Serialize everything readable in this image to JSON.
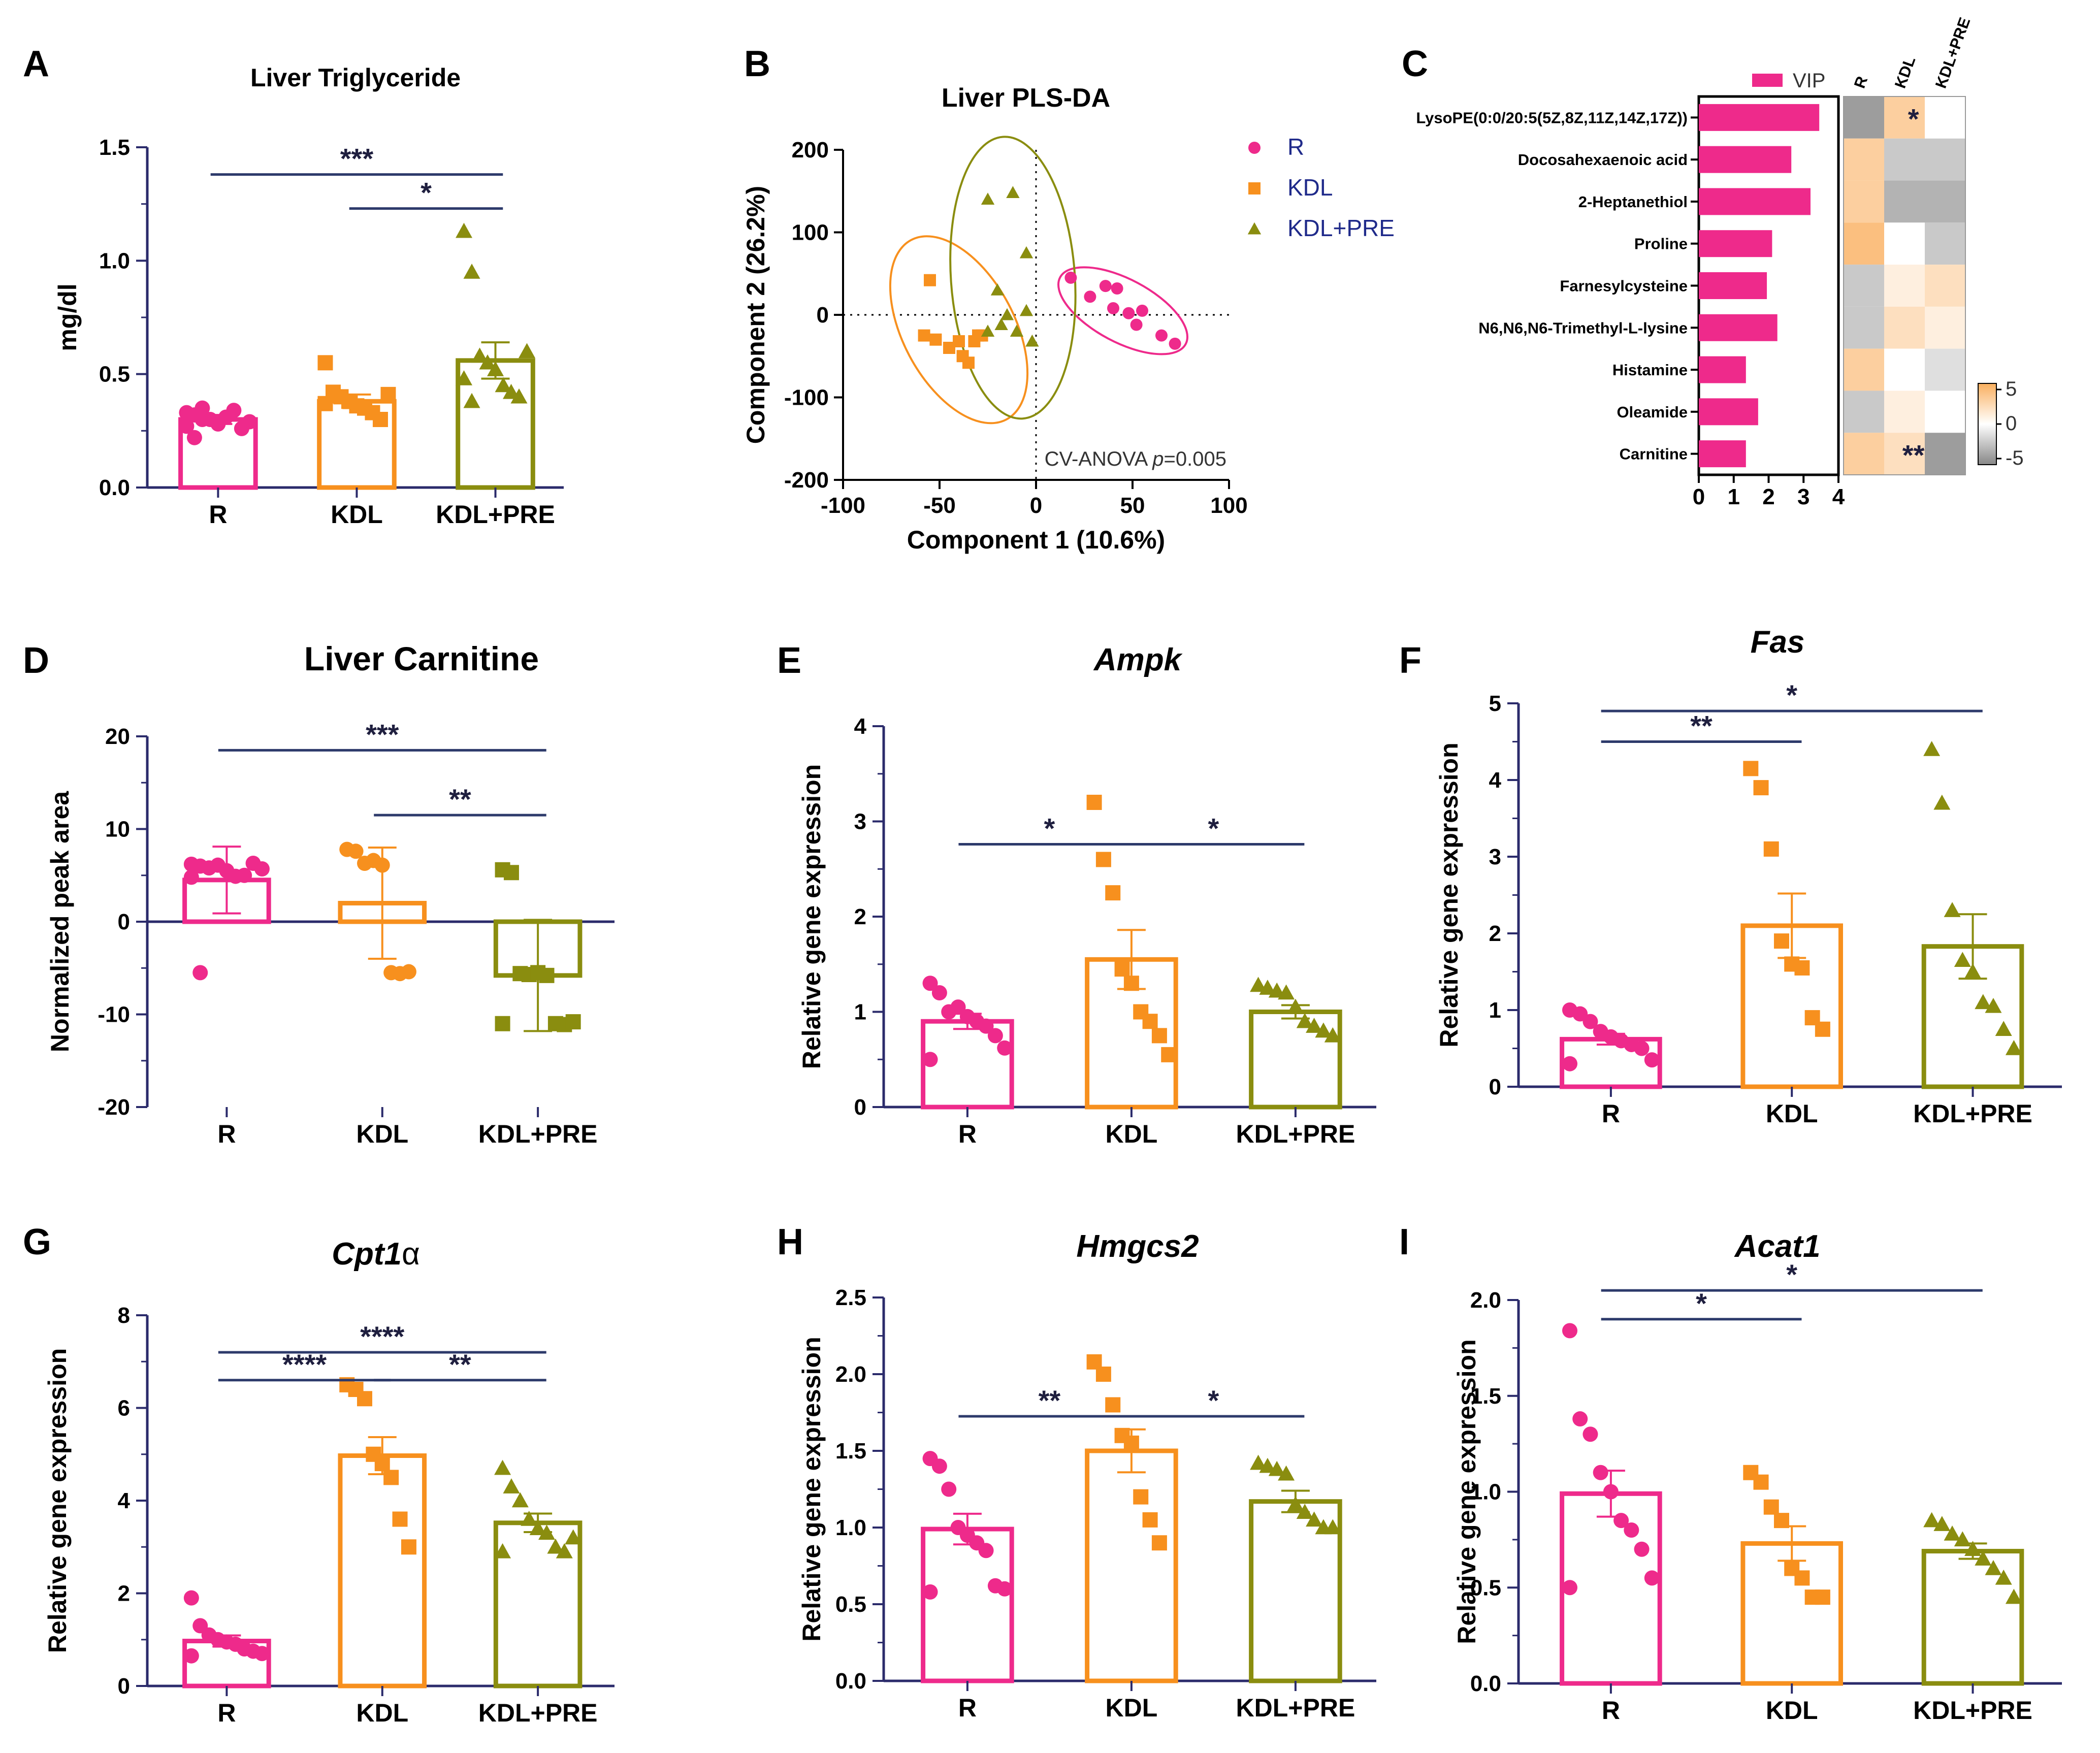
{
  "colors": {
    "R": "#ee2a8b",
    "KDL": "#f7901e",
    "KDL+PRE": "#8a8d0f",
    "axis": "#2b2b6b",
    "vip": "#ee2a8b"
  },
  "chart_data": [
    {
      "id": "A",
      "label": "A",
      "type": "bar",
      "title": "Liver Triglyceride",
      "ylabel": "mg/dl",
      "ylim": [
        0,
        1.5
      ],
      "yticks": [
        "0.0",
        "0.5",
        "1.0",
        "1.5"
      ],
      "categories": [
        "R",
        "KDL",
        "KDL+PRE"
      ],
      "bars": [
        {
          "mean": 0.3,
          "sem": 0.02,
          "marker": "circle",
          "points": [
            0.27,
            0.32,
            0.35,
            0.3,
            0.28,
            0.31,
            0.34,
            0.26,
            0.29,
            0.33,
            0.22,
            0.3
          ]
        },
        {
          "mean": 0.38,
          "sem": 0.03,
          "marker": "square",
          "points": [
            0.55,
            0.42,
            0.4,
            0.38,
            0.36,
            0.35,
            0.33,
            0.3,
            0.41,
            0.37
          ]
        },
        {
          "mean": 0.56,
          "sem": 0.08,
          "marker": "triangle",
          "points": [
            1.13,
            0.95,
            0.58,
            0.55,
            0.52,
            0.45,
            0.42,
            0.4,
            0.6,
            0.48,
            0.38
          ]
        }
      ],
      "sig": [
        {
          "from": 0,
          "to": 2,
          "text": "***"
        },
        {
          "from": 1,
          "to": 2,
          "text": "*"
        }
      ]
    },
    {
      "id": "D",
      "label": "D",
      "type": "bar",
      "title": "Liver Carnitine",
      "ylabel": "Normalized peak area",
      "ylim": [
        -20,
        20
      ],
      "yticks": [
        "-20",
        "-10",
        "0",
        "10",
        "20"
      ],
      "categories": [
        "R",
        "KDL",
        "KDL+PRE"
      ],
      "bars": [
        {
          "mean": 4.5,
          "sem": 3.6,
          "marker": "circle",
          "points": [
            6.2,
            6.0,
            5.8,
            6.1,
            5.5,
            4.9,
            5.0,
            6.3,
            5.7,
            4.8,
            -5.5
          ]
        },
        {
          "mean": 2.0,
          "sem": 6.0,
          "marker": "circle",
          "points": [
            7.8,
            7.6,
            6.3,
            6.6,
            6.1,
            -5.5,
            -5.6,
            -5.4
          ]
        },
        {
          "mean": -5.8,
          "sem": 6.0,
          "marker": "square",
          "points": [
            5.6,
            5.3,
            -5.6,
            -5.7,
            -5.5,
            -5.8,
            -11.0,
            -11.1,
            -10.8,
            -11.0
          ]
        }
      ],
      "sig": [
        {
          "from": 0,
          "to": 2,
          "text": "***"
        },
        {
          "from": 1,
          "to": 2,
          "text": "**"
        }
      ]
    },
    {
      "id": "E",
      "label": "E",
      "type": "bar",
      "title": "Ampk",
      "ylabel": "Relative gene expression",
      "ylim": [
        0,
        4
      ],
      "yticks": [
        "0",
        "1",
        "2",
        "3",
        "4"
      ],
      "categories": [
        "R",
        "KDL",
        "KDL+PRE"
      ],
      "bars": [
        {
          "mean": 0.9,
          "sem": 0.08,
          "marker": "circle",
          "points": [
            1.3,
            1.2,
            1.0,
            1.05,
            0.95,
            0.9,
            0.85,
            0.75,
            0.62,
            0.5
          ]
        },
        {
          "mean": 1.55,
          "sem": 0.31,
          "marker": "square",
          "points": [
            3.2,
            2.6,
            2.25,
            1.45,
            1.3,
            1.0,
            0.9,
            0.75,
            0.55
          ]
        },
        {
          "mean": 1.0,
          "sem": 0.07,
          "marker": "triangle",
          "points": [
            1.28,
            1.25,
            1.22,
            1.2,
            1.05,
            0.9,
            0.85,
            0.8,
            0.75
          ]
        }
      ],
      "sig": [
        {
          "from": 0,
          "to": 1,
          "text": "*"
        },
        {
          "from": 1,
          "to": 2,
          "text": "*"
        }
      ]
    },
    {
      "id": "F",
      "label": "F",
      "type": "bar",
      "title": "Fas",
      "ylabel": "Relative gene expression",
      "ylim": [
        0,
        5
      ],
      "yticks": [
        "0",
        "1",
        "2",
        "3",
        "4",
        "5"
      ],
      "categories": [
        "R",
        "KDL",
        "KDL+PRE"
      ],
      "bars": [
        {
          "mean": 0.62,
          "sem": 0.07,
          "marker": "circle",
          "points": [
            1.0,
            0.95,
            0.85,
            0.72,
            0.65,
            0.6,
            0.55,
            0.5,
            0.35,
            0.3
          ]
        },
        {
          "mean": 2.1,
          "sem": 0.42,
          "marker": "square",
          "points": [
            4.15,
            3.9,
            3.1,
            1.9,
            1.6,
            1.55,
            0.9,
            0.75
          ]
        },
        {
          "mean": 1.83,
          "sem": 0.42,
          "marker": "triangle",
          "points": [
            4.4,
            3.7,
            2.3,
            1.65,
            1.5,
            1.1,
            1.05,
            0.75,
            0.5
          ]
        }
      ],
      "sig": [
        {
          "from": 0,
          "to": 1,
          "text": "**"
        },
        {
          "from": 0,
          "to": 2,
          "text": "*"
        }
      ]
    },
    {
      "id": "G",
      "label": "G",
      "type": "bar",
      "title": "Cpt1",
      "title_suffix": "α",
      "ylabel": "Relative gene expression",
      "ylim": [
        0,
        8
      ],
      "yticks": [
        "0",
        "2",
        "4",
        "6",
        "8"
      ],
      "categories": [
        "R",
        "KDL",
        "KDL+PRE"
      ],
      "bars": [
        {
          "mean": 0.97,
          "sem": 0.12,
          "marker": "circle",
          "points": [
            1.9,
            1.3,
            1.1,
            1.0,
            0.95,
            0.9,
            0.8,
            0.75,
            0.7,
            0.65
          ]
        },
        {
          "mean": 4.97,
          "sem": 0.4,
          "marker": "square",
          "points": [
            6.5,
            6.4,
            6.2,
            5.0,
            4.8,
            4.5,
            3.6,
            3.0
          ]
        },
        {
          "mean": 3.52,
          "sem": 0.2,
          "marker": "triangle",
          "points": [
            4.7,
            4.3,
            4.0,
            3.6,
            3.4,
            3.3,
            3.0,
            2.9,
            3.2,
            2.9
          ]
        }
      ],
      "sig": [
        {
          "from": 0,
          "to": 2,
          "text": "****"
        },
        {
          "from": 0,
          "to": 1,
          "text": "****"
        },
        {
          "from": 1,
          "to": 2,
          "text": "**"
        }
      ]
    },
    {
      "id": "H",
      "label": "H",
      "type": "bar",
      "title": "Hmgcs2",
      "ylabel": "Relative gene expression",
      "ylim": [
        0,
        2.5
      ],
      "yticks": [
        "0.0",
        "0.5",
        "1.0",
        "1.5",
        "2.0",
        "2.5"
      ],
      "categories": [
        "R",
        "KDL",
        "KDL+PRE"
      ],
      "bars": [
        {
          "mean": 0.99,
          "sem": 0.1,
          "marker": "circle",
          "points": [
            1.45,
            1.4,
            1.25,
            1.0,
            0.95,
            0.9,
            0.85,
            0.62,
            0.6,
            0.58
          ]
        },
        {
          "mean": 1.5,
          "sem": 0.14,
          "marker": "square",
          "points": [
            2.08,
            2.0,
            1.8,
            1.6,
            1.55,
            1.2,
            1.05,
            0.9
          ]
        },
        {
          "mean": 1.17,
          "sem": 0.07,
          "marker": "triangle",
          "points": [
            1.42,
            1.4,
            1.38,
            1.35,
            1.15,
            1.1,
            1.05,
            1.0,
            1.0
          ]
        }
      ],
      "sig": [
        {
          "from": 0,
          "to": 1,
          "text": "**"
        },
        {
          "from": 1,
          "to": 2,
          "text": "*"
        }
      ]
    },
    {
      "id": "I",
      "label": "I",
      "type": "bar",
      "title": "Acat1",
      "ylabel": "Relative gene expression",
      "ylim": [
        0,
        2.0
      ],
      "yticks": [
        "0.0",
        "0.5",
        "1.0",
        "1.5",
        "2.0"
      ],
      "categories": [
        "R",
        "KDL",
        "KDL+PRE"
      ],
      "bars": [
        {
          "mean": 0.99,
          "sem": 0.12,
          "marker": "circle",
          "points": [
            1.84,
            1.38,
            1.3,
            1.1,
            1.0,
            0.85,
            0.8,
            0.7,
            0.55,
            0.5
          ]
        },
        {
          "mean": 0.73,
          "sem": 0.09,
          "marker": "square",
          "points": [
            1.1,
            1.05,
            0.92,
            0.85,
            0.6,
            0.55,
            0.45,
            0.45
          ]
        },
        {
          "mean": 0.69,
          "sem": 0.04,
          "marker": "triangle",
          "points": [
            0.85,
            0.83,
            0.78,
            0.75,
            0.7,
            0.65,
            0.6,
            0.55,
            0.45
          ]
        }
      ],
      "sig": [
        {
          "from": 0,
          "to": 1,
          "text": "*"
        },
        {
          "from": 0,
          "to": 2,
          "text": "*"
        }
      ]
    },
    {
      "id": "B",
      "label": "B",
      "type": "scatter",
      "title": "Liver PLS-DA",
      "xlabel": "Component 1 (10.6%)",
      "ylabel": "Component 2 (26.2%)",
      "xlim": [
        -100,
        100
      ],
      "ylim": [
        -200,
        200
      ],
      "xticks": [
        "-100",
        "-50",
        "0",
        "50",
        "100"
      ],
      "yticks": [
        "-200",
        "-100",
        "0",
        "100",
        "200"
      ],
      "annotation_prefix": "CV-ANOVA ",
      "annotation_p": "p",
      "annotation_value": "=0.005",
      "series": [
        {
          "name": "R",
          "marker": "circle",
          "points": [
            [
              18,
              45
            ],
            [
              28,
              22
            ],
            [
              36,
              35
            ],
            [
              42,
              32
            ],
            [
              40,
              8
            ],
            [
              48,
              2
            ],
            [
              55,
              5
            ],
            [
              52,
              -12
            ],
            [
              65,
              -25
            ],
            [
              72,
              -35
            ]
          ]
        },
        {
          "name": "KDL",
          "marker": "square",
          "points": [
            [
              -55,
              42
            ],
            [
              -58,
              -25
            ],
            [
              -52,
              -30
            ],
            [
              -40,
              -32
            ],
            [
              -45,
              -40
            ],
            [
              -38,
              -50
            ],
            [
              -32,
              -32
            ],
            [
              -30,
              -25
            ],
            [
              -35,
              -58
            ],
            [
              -28,
              -25
            ]
          ]
        },
        {
          "name": "KDL+PRE",
          "marker": "triangle",
          "points": [
            [
              -25,
              140
            ],
            [
              -12,
              148
            ],
            [
              -5,
              75
            ],
            [
              -20,
              30
            ],
            [
              -10,
              -20
            ],
            [
              -15,
              0
            ],
            [
              -5,
              5
            ],
            [
              -2,
              -32
            ],
            [
              -18,
              -12
            ],
            [
              -25,
              -20
            ]
          ]
        }
      ],
      "legend": [
        "R",
        "KDL",
        "KDL+PRE"
      ]
    },
    {
      "id": "C",
      "label": "C",
      "type": "bar",
      "orientation": "horizontal",
      "legend_label": "VIP",
      "xlim": [
        0,
        4
      ],
      "xticks": [
        "0",
        "1",
        "2",
        "3",
        "4"
      ],
      "categories": [
        "LysoPE(0:0/20:5(5Z,8Z,11Z,14Z,17Z))",
        "Docosahexaenoic acid",
        "2-Heptanethiol",
        "Proline",
        "Farnesylcysteine",
        "N6,N6,N6-Trimethyl-L-lysine",
        "Histamine",
        "Oleamide",
        "Carnitine"
      ],
      "values": [
        3.45,
        2.65,
        3.2,
        2.1,
        1.95,
        2.25,
        1.35,
        1.7,
        1.35
      ],
      "heatmap": {
        "columns": [
          "R",
          "KDL",
          "KDL+PRE"
        ],
        "values": [
          [
            -4,
            3,
            0
          ],
          [
            3,
            -2,
            -2
          ],
          [
            3,
            -3,
            -3
          ],
          [
            4,
            0,
            -2
          ],
          [
            -2,
            1,
            2
          ],
          [
            -2,
            2,
            1
          ],
          [
            3,
            0,
            -1
          ],
          [
            -2,
            1,
            0
          ],
          [
            3,
            2,
            -4
          ]
        ],
        "stars": [
          {
            "row": 0,
            "col": 1,
            "text": "*"
          },
          {
            "row": 8,
            "col": 1,
            "text": "**"
          }
        ],
        "scale_ticks": [
          "5",
          "0",
          "-5"
        ]
      }
    }
  ]
}
